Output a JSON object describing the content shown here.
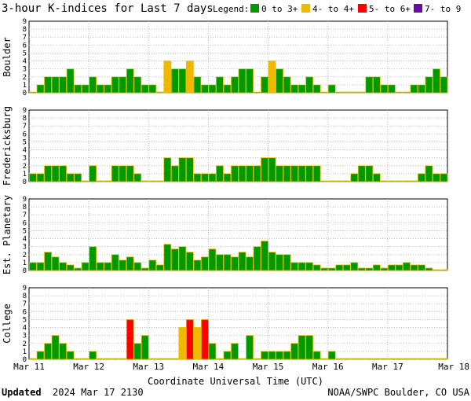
{
  "chart_data": {
    "type": "bar",
    "title": "3-hour K-indices for Last 7 days",
    "legend": {
      "label": "Legend:",
      "items": [
        {
          "label": "0 to 3+",
          "color": "#009900"
        },
        {
          "label": "4- to 4+",
          "color": "#f0b800"
        },
        {
          "label": "5- to 6+",
          "color": "#ff0000"
        },
        {
          "label": "7- to 9",
          "color": "#6a0aa8"
        }
      ],
      "placement": "top-right"
    },
    "bar_outline_color": "#e0c000",
    "ylim": [
      0,
      9
    ],
    "yticks": [
      "0",
      "1",
      "2",
      "3",
      "4",
      "5",
      "6",
      "7",
      "8",
      "9"
    ],
    "x_tick_labels": [
      "Mar 11",
      "Mar 12",
      "Mar 13",
      "Mar 14",
      "Mar 15",
      "Mar 16",
      "Mar 17",
      "Mar 18"
    ],
    "xlabel": "Coordinate Universal Time (UTC)",
    "bins_per_day": 8,
    "days": 7,
    "grid": true,
    "series": [
      {
        "name": "Boulder",
        "values": [
          0,
          1,
          2,
          2,
          2,
          3,
          1,
          1,
          2,
          1,
          1,
          2,
          2,
          3,
          2,
          1,
          1,
          0,
          4,
          3,
          3,
          4,
          2,
          1,
          1,
          2,
          1,
          2,
          3,
          3,
          0,
          2,
          4,
          3,
          2,
          1,
          1,
          2,
          1,
          0,
          1,
          0,
          0,
          0,
          0,
          2,
          2,
          1,
          1,
          0,
          0,
          1,
          1,
          2,
          3,
          2,
          0
        ]
      },
      {
        "name": "Fredericksburg",
        "values": [
          1,
          1,
          2,
          2,
          2,
          1,
          1,
          0,
          2,
          0,
          0,
          2,
          2,
          2,
          1,
          0,
          0,
          0,
          3,
          2,
          3,
          3,
          1,
          1,
          1,
          2,
          1,
          2,
          2,
          2,
          2,
          3,
          3,
          2,
          2,
          2,
          2,
          2,
          2,
          0,
          0,
          0,
          0,
          1,
          2,
          2,
          1,
          0,
          0,
          0,
          0,
          0,
          1,
          2,
          1,
          1,
          0
        ]
      },
      {
        "name": "Est. Planetary",
        "values": [
          1,
          1,
          2.3,
          1.7,
          1,
          0.7,
          0.3,
          1,
          3,
          1,
          1,
          2,
          1.3,
          1.7,
          1,
          0.3,
          1.3,
          0.7,
          3.3,
          2.7,
          3,
          2.3,
          1.3,
          1.7,
          2.7,
          2,
          2,
          1.7,
          2.3,
          1.7,
          3,
          3.7,
          2.3,
          2,
          2,
          1,
          1,
          1,
          0.7,
          0.3,
          0.3,
          0.7,
          0.7,
          1,
          0.3,
          0.3,
          0.7,
          0.3,
          0.7,
          0.7,
          1,
          0.7,
          0.7,
          0.3,
          0,
          0,
          0
        ]
      },
      {
        "name": "College",
        "values": [
          0,
          1,
          2,
          3,
          2,
          1,
          0,
          0,
          1,
          0,
          0,
          0,
          0,
          5,
          2,
          3,
          0,
          0,
          0,
          0,
          4,
          5,
          4,
          5,
          2,
          0,
          1,
          2,
          0,
          3,
          0,
          1,
          1,
          1,
          1,
          2,
          3,
          3,
          1,
          0,
          1,
          0,
          0,
          0,
          0,
          0,
          0,
          0,
          0,
          0,
          0,
          0,
          0,
          0,
          0,
          0,
          0
        ]
      }
    ]
  },
  "footer": {
    "updated_label": "Updated",
    "updated_value": "2024 Mar 17 2130",
    "credit": "NOAA/SWPC Boulder, CO USA"
  }
}
